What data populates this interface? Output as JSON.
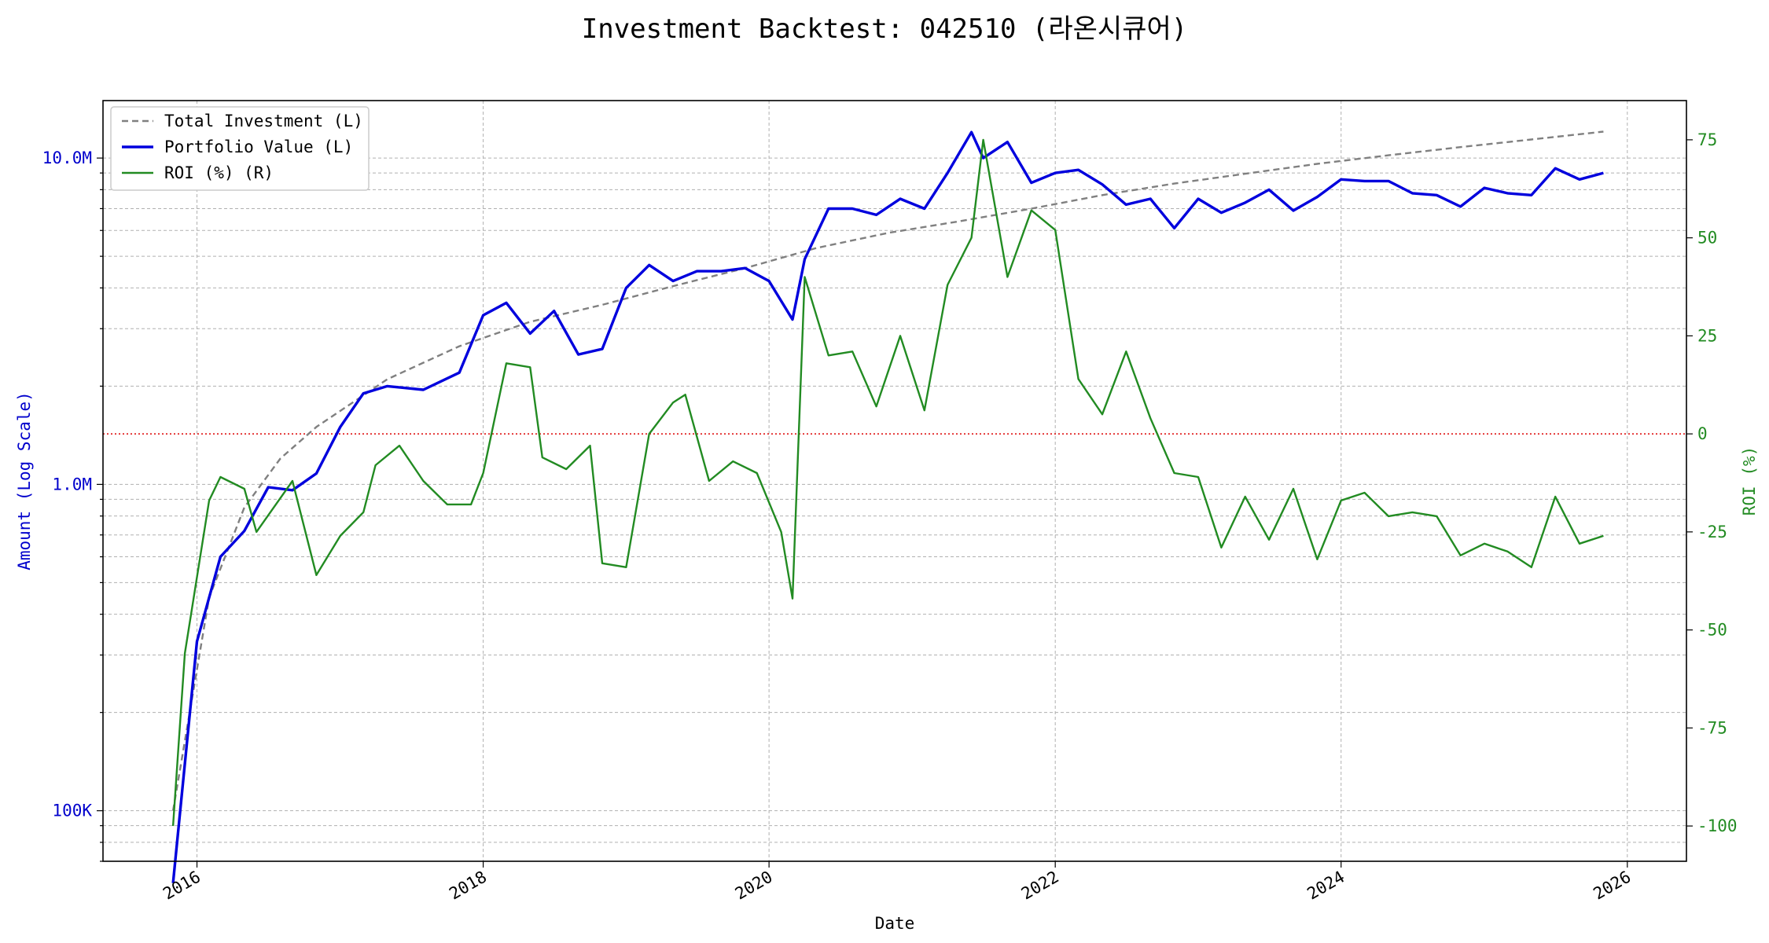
{
  "chart_data": {
    "type": "line",
    "title": "Investment Backtest: 042510 (라온시큐어)",
    "xlabel": "Date",
    "ylabel_left": "Amount (Log Scale)",
    "ylabel_right": "ROI (%)",
    "y_left_scale": "log",
    "y_left_ticks": [
      {
        "value": 100000,
        "label": "100K"
      },
      {
        "value": 1000000,
        "label": "1.0M"
      },
      {
        "value": 10000000,
        "label": "10.0M"
      }
    ],
    "y_right_ticks": [
      -100,
      -75,
      -50,
      -25,
      0,
      25,
      50,
      75
    ],
    "x_ticks": [
      "2016",
      "2018",
      "2020",
      "2022",
      "2024",
      "2026"
    ],
    "grid": true,
    "legend_position": "upper-left",
    "reference_line": {
      "axis": "right",
      "value": 0,
      "color": "#dd0000",
      "style": "dotted"
    },
    "x_range": [
      "2015-05-06",
      "2026-06-01"
    ],
    "y_left_range": [
      70000,
      15000000
    ],
    "y_right_range": [
      -109,
      85
    ],
    "series": [
      {
        "name": "Total Investment (L)",
        "axis": "left",
        "color": "#808080",
        "style": "dashed",
        "x": [
          "2015-11-01",
          "2016-02-01",
          "2016-05-01",
          "2016-08-01",
          "2016-11-01",
          "2017-05-01",
          "2017-11-01",
          "2018-05-01",
          "2018-11-01",
          "2019-05-01",
          "2019-11-01",
          "2020-05-01",
          "2020-11-01",
          "2021-05-01",
          "2021-11-01",
          "2022-05-01",
          "2022-11-01",
          "2023-05-01",
          "2023-11-01",
          "2024-05-01",
          "2024-11-01",
          "2025-05-01",
          "2025-11-01"
        ],
        "values": [
          100000,
          450000,
          850000,
          1200000,
          1500000,
          2100000,
          2650000,
          3150000,
          3550000,
          4050000,
          4600000,
          5300000,
          5900000,
          6400000,
          7000000,
          7700000,
          8350000,
          8950000,
          9600000,
          10200000,
          10800000,
          11400000,
          12050000
        ]
      },
      {
        "name": "Portfolio Value (L)",
        "axis": "left",
        "color": "#0000dd",
        "style": "solid",
        "x": [
          "2015-11-01",
          "2016-01-01",
          "2016-03-01",
          "2016-05-01",
          "2016-07-01",
          "2016-09-01",
          "2016-11-01",
          "2017-01-01",
          "2017-03-01",
          "2017-05-01",
          "2017-08-01",
          "2017-11-01",
          "2018-01-01",
          "2018-03-01",
          "2018-05-01",
          "2018-07-01",
          "2018-09-01",
          "2018-11-01",
          "2019-01-01",
          "2019-03-01",
          "2019-05-01",
          "2019-07-01",
          "2019-09-01",
          "2019-11-01",
          "2020-01-01",
          "2020-03-01",
          "2020-04-01",
          "2020-06-01",
          "2020-08-01",
          "2020-10-01",
          "2020-12-01",
          "2021-02-01",
          "2021-04-01",
          "2021-06-01",
          "2021-07-01",
          "2021-09-01",
          "2021-11-01",
          "2022-01-01",
          "2022-03-01",
          "2022-05-01",
          "2022-07-01",
          "2022-09-01",
          "2022-11-01",
          "2023-01-01",
          "2023-03-01",
          "2023-05-01",
          "2023-07-01",
          "2023-09-01",
          "2023-11-01",
          "2024-01-01",
          "2024-03-01",
          "2024-05-01",
          "2024-07-01",
          "2024-09-01",
          "2024-11-01",
          "2025-01-01",
          "2025-03-01",
          "2025-05-01",
          "2025-07-01",
          "2025-09-01",
          "2025-11-01"
        ],
        "values": [
          60000,
          330000,
          600000,
          720000,
          980000,
          960000,
          1080000,
          1500000,
          1900000,
          2000000,
          1950000,
          2200000,
          3300000,
          3600000,
          2900000,
          3400000,
          2500000,
          2600000,
          4000000,
          4700000,
          4200000,
          4500000,
          4500000,
          4600000,
          4200000,
          3200000,
          4900000,
          7000000,
          7000000,
          6700000,
          7500000,
          7000000,
          9000000,
          12000000,
          10000000,
          11200000,
          8400000,
          9000000,
          9200000,
          8300000,
          7200000,
          7500000,
          6100000,
          7500000,
          6800000,
          7300000,
          8000000,
          6900000,
          7600000,
          8600000,
          8500000,
          8500000,
          7800000,
          7700000,
          7100000,
          8100000,
          7800000,
          7700000,
          9300000,
          8600000,
          9000000
        ]
      },
      {
        "name": "ROI (%) (R)",
        "axis": "right",
        "color": "#228b22",
        "style": "solid",
        "x": [
          "2015-11-01",
          "2015-12-01",
          "2016-02-01",
          "2016-03-01",
          "2016-05-01",
          "2016-06-01",
          "2016-09-01",
          "2016-11-01",
          "2017-01-01",
          "2017-03-01",
          "2017-04-01",
          "2017-06-01",
          "2017-08-01",
          "2017-10-01",
          "2017-12-01",
          "2018-01-01",
          "2018-03-01",
          "2018-05-01",
          "2018-06-01",
          "2018-08-01",
          "2018-10-01",
          "2018-11-01",
          "2019-01-01",
          "2019-03-01",
          "2019-05-01",
          "2019-06-01",
          "2019-08-01",
          "2019-10-01",
          "2019-12-01",
          "2020-02-01",
          "2020-03-01",
          "2020-04-01",
          "2020-06-01",
          "2020-08-01",
          "2020-10-01",
          "2020-12-01",
          "2021-02-01",
          "2021-04-01",
          "2021-06-01",
          "2021-07-01",
          "2021-09-01",
          "2021-11-01",
          "2022-01-01",
          "2022-03-01",
          "2022-05-01",
          "2022-07-01",
          "2022-09-01",
          "2022-11-01",
          "2023-01-01",
          "2023-03-01",
          "2023-05-01",
          "2023-07-01",
          "2023-09-01",
          "2023-11-01",
          "2024-01-01",
          "2024-03-01",
          "2024-05-01",
          "2024-07-01",
          "2024-09-01",
          "2024-11-01",
          "2025-01-01",
          "2025-03-01",
          "2025-05-01",
          "2025-07-01",
          "2025-09-01",
          "2025-11-01"
        ],
        "values": [
          -100,
          -56,
          -17,
          -11,
          -14,
          -25,
          -12,
          -36,
          -26,
          -20,
          -8,
          -3,
          -12,
          -18,
          -18,
          -10,
          18,
          17,
          -6,
          -9,
          -3,
          -33,
          -34,
          0,
          8,
          10,
          -12,
          -7,
          -10,
          -25,
          -42,
          40,
          20,
          21,
          7,
          25,
          6,
          38,
          50,
          75,
          40,
          57,
          52,
          14,
          5,
          21,
          4,
          -10,
          -11,
          -29,
          -16,
          -27,
          -14,
          -32,
          -17,
          -15,
          -21,
          -20,
          -21,
          -31,
          -28,
          -30,
          -34,
          -16,
          -28,
          -26
        ]
      }
    ]
  }
}
